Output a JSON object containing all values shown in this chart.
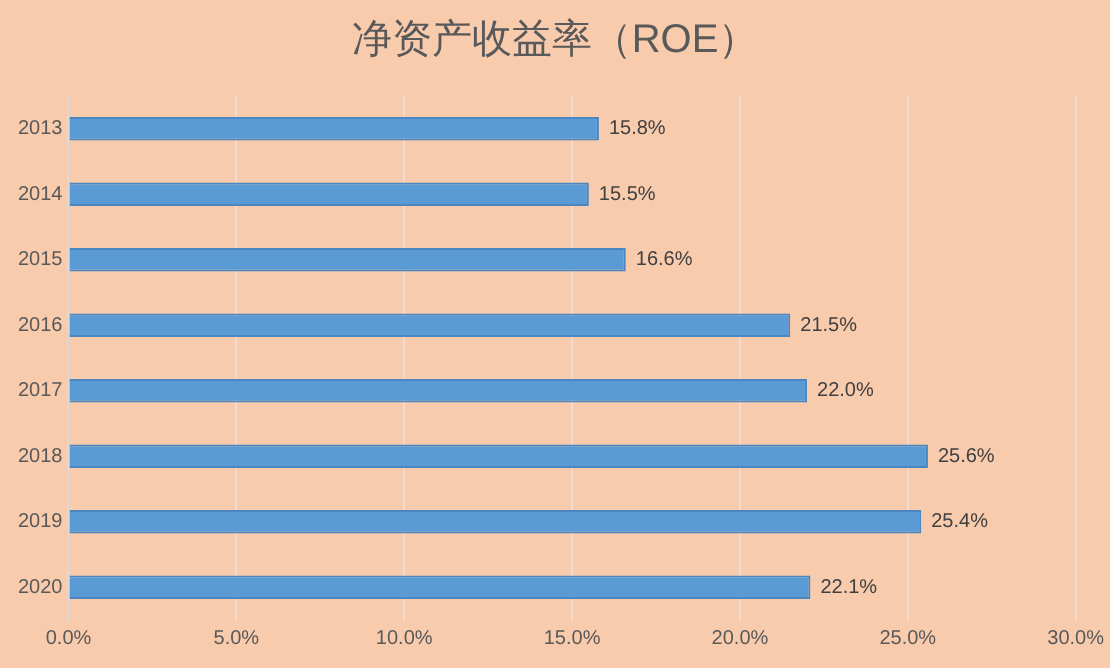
{
  "chart_data": {
    "type": "bar",
    "orientation": "horizontal",
    "title": "净资产收益率（ROE）",
    "categories": [
      "2013",
      "2014",
      "2015",
      "2016",
      "2017",
      "2018",
      "2019",
      "2020"
    ],
    "values": [
      15.8,
      15.5,
      16.6,
      21.5,
      22.0,
      25.6,
      25.4,
      22.1
    ],
    "value_labels": [
      "15.8%",
      "15.5%",
      "16.6%",
      "21.5%",
      "22.0%",
      "25.6%",
      "25.4%",
      "22.1%"
    ],
    "color": "#5b9bd5",
    "xlim": [
      0,
      30
    ],
    "xticks": [
      {
        "value": 0,
        "label": "0.0%"
      },
      {
        "value": 5,
        "label": "5.0%"
      },
      {
        "value": 10,
        "label": "10.0%"
      },
      {
        "value": 15,
        "label": "15.0%"
      },
      {
        "value": 20,
        "label": "20.0%"
      },
      {
        "value": 25,
        "label": "25.0%"
      },
      {
        "value": 30,
        "label": "30.0%"
      }
    ],
    "grid": "x",
    "legend": false
  }
}
